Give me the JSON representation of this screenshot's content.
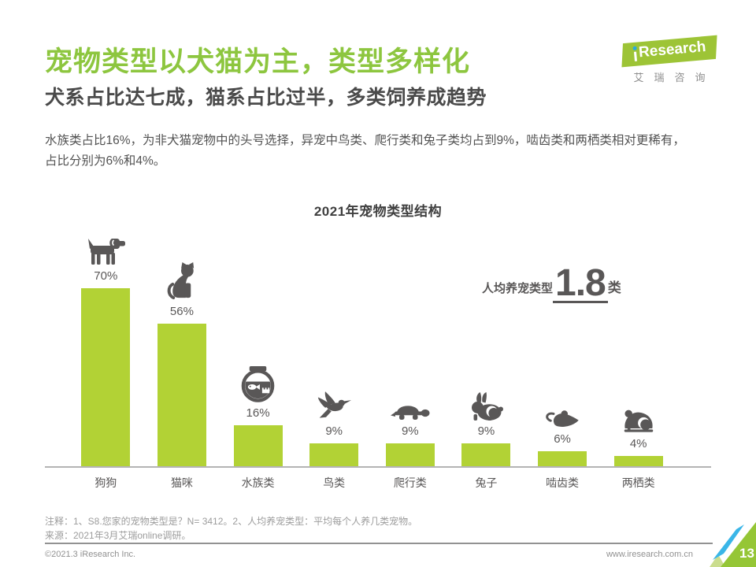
{
  "page": {
    "title": "宠物类型以犬猫为主，类型多样化",
    "subtitle": "犬系占比达七成，猫系占比过半，多类饲养成趋势",
    "intro_line1": "水族类占比16%，为非犬猫宠物中的头号选择，异宠中鸟类、爬行类和兔子类均占到9%，啮齿类和两栖类相对更稀有，",
    "intro_line2": "占比分别为6%和4%。"
  },
  "logo": {
    "brand": "Research",
    "brand_cn": "艾瑞咨询"
  },
  "chart_data": {
    "type": "bar",
    "title": "2021年宠物类型结构",
    "categories": [
      "狗狗",
      "猫咪",
      "水族类",
      "鸟类",
      "爬行类",
      "兔子",
      "啮齿类",
      "两栖类"
    ],
    "values": [
      70,
      56,
      16,
      9,
      9,
      9,
      6,
      4
    ],
    "unit": "%",
    "value_labels": [
      "70%",
      "56%",
      "16%",
      "9%",
      "9%",
      "9%",
      "6%",
      "4%"
    ],
    "icons": [
      "dog",
      "cat",
      "fishbowl",
      "bird",
      "turtle",
      "rabbit",
      "rodent",
      "frog"
    ],
    "bar_color": "#b2d235",
    "ylim": [
      0,
      100
    ],
    "grid": false,
    "legend": false,
    "annotation": {
      "label": "人均养宠类型",
      "value": "1.8",
      "unit": "类"
    }
  },
  "footer": {
    "note1": "注释：1、S8.您家的宠物类型是？N= 3412。2、人均养宠类型：平均每个人养几类宠物。",
    "note2": "来源：2021年3月艾瑞online调研。",
    "copyright": "©2021.3 iResearch Inc.",
    "website": "www.iresearch.com.cn",
    "page_number": "13"
  },
  "colors": {
    "title_green": "#8dc63f",
    "bar_green": "#b2d235",
    "icon_gray": "#595757",
    "corner_teal": "#3ab6e8",
    "corner_green": "#95c636"
  }
}
